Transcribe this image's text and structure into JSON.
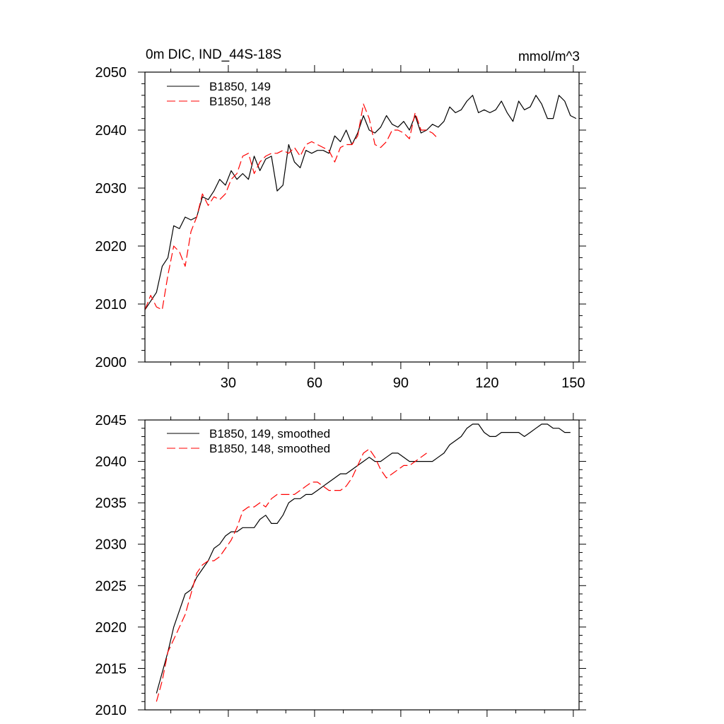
{
  "colors": {
    "black": "#000000",
    "red": "#ff0000"
  },
  "chart_data": [
    {
      "type": "line",
      "title": "0m DIC, IND_44S-18S",
      "units": "mmol/m^3",
      "xlim": [
        1,
        152
      ],
      "ylim": [
        2000,
        2050
      ],
      "xticks": [
        30,
        60,
        90,
        120,
        150
      ],
      "xtick_labels": [
        "30",
        "60",
        "90",
        "120",
        "150"
      ],
      "yticks": [
        2000,
        2010,
        2020,
        2030,
        2040,
        2050
      ],
      "ytick_labels": [
        "2000",
        "2010",
        "2020",
        "2030",
        "2040",
        "2050"
      ],
      "grid": false,
      "legend_position": "top-left",
      "series": [
        {
          "name": "B1850, 149",
          "color": "#000000",
          "dash": "solid",
          "x": [
            1,
            3,
            5,
            7,
            9,
            11,
            13,
            15,
            17,
            19,
            21,
            23,
            25,
            27,
            29,
            31,
            33,
            35,
            37,
            39,
            41,
            43,
            45,
            47,
            49,
            51,
            53,
            55,
            57,
            59,
            61,
            63,
            65,
            67,
            69,
            71,
            73,
            75,
            77,
            79,
            81,
            83,
            85,
            87,
            89,
            91,
            93,
            95,
            97,
            99,
            101,
            103,
            105,
            107,
            109,
            111,
            113,
            115,
            117,
            119,
            121,
            123,
            125,
            127,
            129,
            131,
            133,
            135,
            137,
            139,
            141,
            143,
            145,
            147,
            149,
            151
          ],
          "values": [
            2009.0,
            2010.5,
            2012.0,
            2016.5,
            2018.0,
            2023.5,
            2023.0,
            2025.0,
            2024.5,
            2025.0,
            2028.5,
            2028.0,
            2029.5,
            2031.5,
            2030.5,
            2033.0,
            2031.5,
            2032.5,
            2031.5,
            2035.5,
            2033.0,
            2035.0,
            2035.5,
            2029.5,
            2030.5,
            2037.5,
            2034.5,
            2033.5,
            2036.5,
            2036.0,
            2036.5,
            2036.5,
            2036.0,
            2039.0,
            2038.0,
            2040.0,
            2037.5,
            2039.5,
            2042.5,
            2040.0,
            2039.5,
            2040.5,
            2042.5,
            2041.0,
            2040.5,
            2041.5,
            2040.0,
            2042.5,
            2039.5,
            2040.0,
            2041.0,
            2040.5,
            2041.5,
            2044.0,
            2043.0,
            2043.5,
            2045.0,
            2046.0,
            2043.0,
            2043.5,
            2043.0,
            2043.5,
            2045.0,
            2043.0,
            2041.5,
            2045.0,
            2043.5,
            2044.0,
            2046.0,
            2044.5,
            2042.0,
            2042.0,
            2046.0,
            2045.0,
            2042.5,
            2042.0
          ]
        },
        {
          "name": "B1850, 148",
          "color": "#ff0000",
          "dash": "dashed",
          "x": [
            1,
            3,
            5,
            7,
            9,
            11,
            13,
            15,
            17,
            19,
            21,
            23,
            25,
            27,
            29,
            31,
            33,
            35,
            37,
            39,
            41,
            43,
            45,
            47,
            49,
            51,
            53,
            55,
            57,
            59,
            61,
            63,
            65,
            67,
            69,
            71,
            73,
            75,
            77,
            79,
            81,
            83,
            85,
            87,
            89,
            91,
            93,
            95,
            97,
            99,
            101,
            103
          ],
          "values": [
            2009.0,
            2011.5,
            2009.5,
            2009.0,
            2015.0,
            2020.0,
            2019.0,
            2016.5,
            2022.5,
            2025.0,
            2029.0,
            2027.0,
            2028.5,
            2028.0,
            2029.0,
            2031.5,
            2032.5,
            2035.5,
            2036.0,
            2032.5,
            2034.5,
            2035.5,
            2036.0,
            2036.0,
            2036.5,
            2036.0,
            2037.0,
            2035.5,
            2037.5,
            2038.0,
            2037.5,
            2037.0,
            2036.5,
            2034.5,
            2037.0,
            2037.5,
            2037.5,
            2039.0,
            2044.5,
            2042.0,
            2037.5,
            2037.0,
            2038.0,
            2040.0,
            2040.0,
            2039.5,
            2038.5,
            2043.0,
            2040.0,
            2040.0,
            2039.5,
            2038.5
          ]
        }
      ]
    },
    {
      "type": "line",
      "title": "",
      "xlim": [
        1,
        152
      ],
      "ylim": [
        2010,
        2045
      ],
      "xticks": [
        30,
        60,
        90,
        120,
        150
      ],
      "xtick_labels": [],
      "yticks": [
        2010,
        2015,
        2020,
        2025,
        2030,
        2035,
        2040,
        2045
      ],
      "ytick_labels": [
        "2010",
        "2015",
        "2020",
        "2025",
        "2030",
        "2035",
        "2040",
        "2045"
      ],
      "grid": false,
      "legend_position": "top-left",
      "series": [
        {
          "name": "B1850, 149, smoothed",
          "color": "#000000",
          "dash": "solid",
          "x": [
            5,
            7,
            9,
            11,
            13,
            15,
            17,
            19,
            21,
            23,
            25,
            27,
            29,
            31,
            33,
            35,
            37,
            39,
            41,
            43,
            45,
            47,
            49,
            51,
            53,
            55,
            57,
            59,
            61,
            63,
            65,
            67,
            69,
            71,
            73,
            75,
            77,
            79,
            81,
            83,
            85,
            87,
            89,
            91,
            93,
            95,
            97,
            99,
            101,
            103,
            105,
            107,
            109,
            111,
            113,
            115,
            117,
            119,
            121,
            123,
            125,
            127,
            129,
            131,
            133,
            135,
            137,
            139,
            141,
            143,
            145,
            147,
            149
          ],
          "values": [
            2012.0,
            2014.5,
            2017.0,
            2020.0,
            2022.0,
            2024.0,
            2024.5,
            2026.0,
            2027.0,
            2028.0,
            2029.5,
            2030.0,
            2031.0,
            2031.5,
            2031.5,
            2032.0,
            2032.0,
            2032.0,
            2033.0,
            2033.5,
            2032.5,
            2032.5,
            2033.5,
            2035.0,
            2035.5,
            2035.5,
            2036.0,
            2036.0,
            2036.5,
            2037.0,
            2037.5,
            2038.0,
            2038.5,
            2038.5,
            2039.0,
            2039.5,
            2040.0,
            2040.5,
            2040.0,
            2040.0,
            2040.5,
            2041.0,
            2041.0,
            2040.5,
            2040.0,
            2040.0,
            2040.0,
            2040.0,
            2040.0,
            2040.5,
            2041.0,
            2042.0,
            2042.5,
            2043.0,
            2044.0,
            2044.5,
            2044.5,
            2043.5,
            2043.0,
            2043.0,
            2043.5,
            2043.5,
            2043.5,
            2043.5,
            2043.0,
            2043.5,
            2044.0,
            2044.5,
            2044.5,
            2044.0,
            2044.0,
            2043.5,
            2043.5
          ]
        },
        {
          "name": "B1850, 148, smoothed",
          "color": "#ff0000",
          "dash": "dashed",
          "x": [
            5,
            7,
            9,
            11,
            13,
            15,
            17,
            19,
            21,
            23,
            25,
            27,
            29,
            31,
            33,
            35,
            37,
            39,
            41,
            43,
            45,
            47,
            49,
            51,
            53,
            55,
            57,
            59,
            61,
            63,
            65,
            67,
            69,
            71,
            73,
            75,
            77,
            79,
            81,
            83,
            85,
            87,
            89,
            91,
            93,
            95,
            97,
            99
          ],
          "values": [
            2011.0,
            2013.5,
            2017.0,
            2018.5,
            2020.0,
            2021.5,
            2024.0,
            2026.5,
            2027.5,
            2028.0,
            2028.0,
            2028.5,
            2029.5,
            2030.5,
            2032.0,
            2034.0,
            2034.5,
            2034.5,
            2035.0,
            2034.5,
            2035.5,
            2036.0,
            2036.0,
            2036.0,
            2036.0,
            2036.5,
            2037.0,
            2037.5,
            2037.5,
            2037.0,
            2036.5,
            2036.5,
            2036.5,
            2037.0,
            2038.0,
            2039.5,
            2041.0,
            2041.5,
            2040.5,
            2039.0,
            2038.0,
            2038.5,
            2039.0,
            2039.5,
            2039.5,
            2040.0,
            2040.5,
            2041.0
          ]
        }
      ]
    }
  ]
}
